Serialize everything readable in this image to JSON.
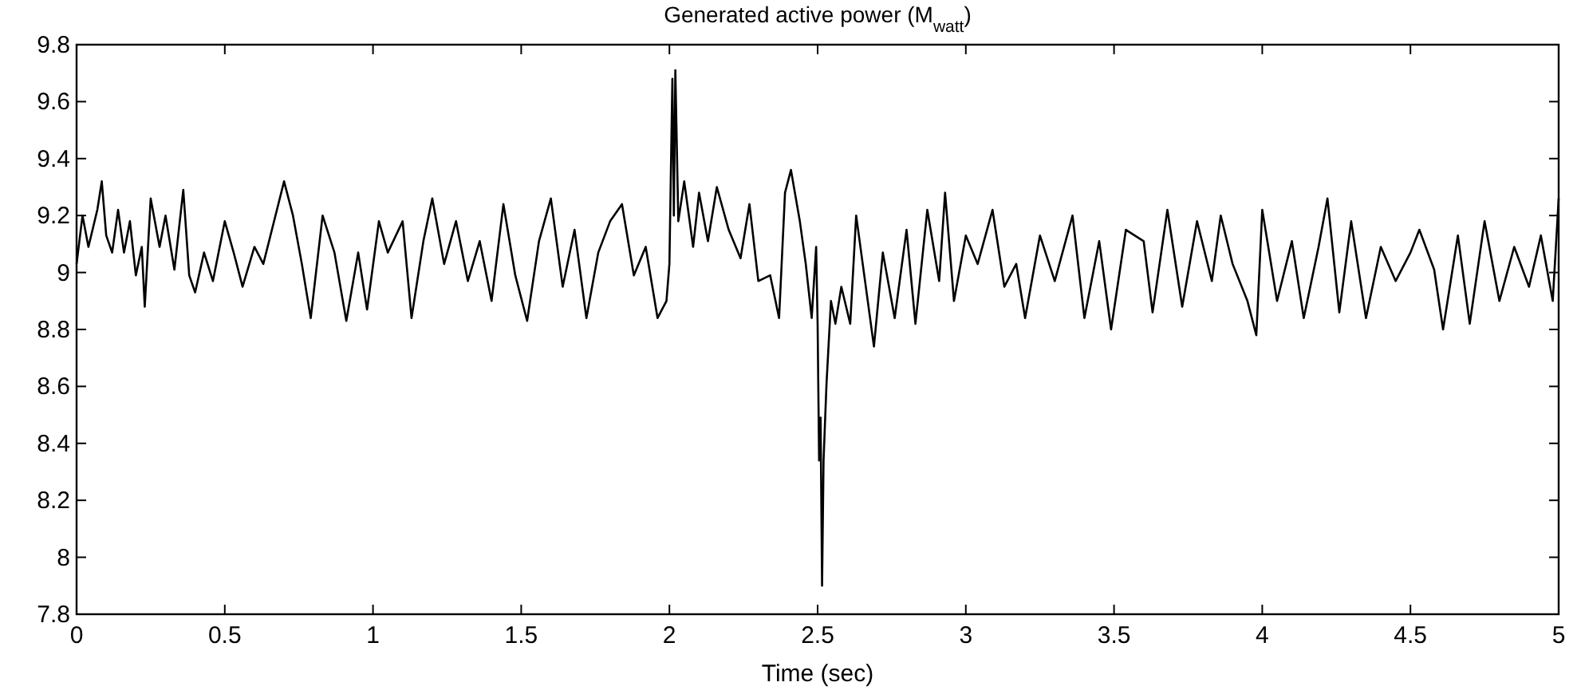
{
  "chart_data": {
    "type": "line",
    "title": "Generated active power (M$_{watt}$)",
    "xlabel": "Time (sec)",
    "xlim": [
      0,
      5
    ],
    "xticks": [
      0,
      0.5,
      1,
      1.5,
      2,
      2.5,
      3,
      3.5,
      4,
      4.5,
      5
    ],
    "ylim": [
      7.8,
      9.8
    ],
    "yticks": [
      7.8,
      8,
      8.2,
      8.4,
      8.6,
      8.8,
      9,
      9.2,
      9.4,
      9.6,
      9.8
    ],
    "grid": false,
    "marker": "none",
    "line_style": "solid",
    "series": [
      {
        "color": "#000000",
        "x": [
          0,
          0.02,
          0.04,
          0.07,
          0.085,
          0.1,
          0.12,
          0.14,
          0.16,
          0.18,
          0.2,
          0.22,
          0.23,
          0.25,
          0.28,
          0.3,
          0.33,
          0.36,
          0.38,
          0.4,
          0.43,
          0.46,
          0.5,
          0.53,
          0.56,
          0.6,
          0.63,
          0.7,
          0.73,
          0.76,
          0.79,
          0.83,
          0.87,
          0.91,
          0.95,
          0.98,
          1.02,
          1.05,
          1.1,
          1.13,
          1.17,
          1.2,
          1.24,
          1.28,
          1.32,
          1.36,
          1.4,
          1.44,
          1.48,
          1.52,
          1.56,
          1.6,
          1.64,
          1.68,
          1.72,
          1.76,
          1.8,
          1.84,
          1.88,
          1.92,
          1.96,
          1.99,
          2.0,
          2.01,
          2.015,
          2.02,
          2.03,
          2.05,
          2.08,
          2.1,
          2.13,
          2.16,
          2.2,
          2.24,
          2.27,
          2.3,
          2.34,
          2.37,
          2.39,
          2.41,
          2.44,
          2.46,
          2.48,
          2.495,
          2.5,
          2.505,
          2.51,
          2.515,
          2.52,
          2.53,
          2.545,
          2.56,
          2.58,
          2.61,
          2.63,
          2.66,
          2.69,
          2.72,
          2.76,
          2.8,
          2.83,
          2.87,
          2.91,
          2.93,
          2.96,
          3.0,
          3.04,
          3.09,
          3.13,
          3.17,
          3.2,
          3.25,
          3.3,
          3.36,
          3.4,
          3.45,
          3.49,
          3.54,
          3.6,
          3.63,
          3.68,
          3.73,
          3.78,
          3.83,
          3.86,
          3.9,
          3.95,
          3.98,
          4.0,
          4.05,
          4.1,
          4.14,
          4.19,
          4.22,
          4.26,
          4.3,
          4.35,
          4.4,
          4.45,
          4.5,
          4.53,
          4.58,
          4.61,
          4.66,
          4.7,
          4.75,
          4.8,
          4.85,
          4.9,
          4.94,
          4.98,
          5.0
        ],
        "values": [
          9.03,
          9.2,
          9.09,
          9.22,
          9.32,
          9.13,
          9.07,
          9.22,
          9.07,
          9.18,
          8.99,
          9.09,
          8.88,
          9.26,
          9.09,
          9.2,
          9.01,
          9.29,
          8.99,
          8.93,
          9.07,
          8.97,
          9.18,
          9.07,
          8.95,
          9.09,
          9.03,
          9.32,
          9.2,
          9.03,
          8.84,
          9.2,
          9.07,
          8.83,
          9.07,
          8.87,
          9.18,
          9.07,
          9.18,
          8.84,
          9.11,
          9.26,
          9.03,
          9.18,
          8.97,
          9.11,
          8.9,
          9.24,
          8.99,
          8.83,
          9.11,
          9.26,
          8.95,
          9.15,
          8.84,
          9.07,
          9.18,
          9.24,
          8.99,
          9.09,
          8.84,
          8.9,
          9.03,
          9.68,
          9.2,
          9.71,
          9.18,
          9.32,
          9.09,
          9.28,
          9.11,
          9.3,
          9.15,
          9.05,
          9.24,
          8.97,
          8.99,
          8.84,
          9.28,
          9.36,
          9.18,
          9.03,
          8.84,
          9.09,
          8.82,
          8.34,
          8.49,
          7.9,
          8.34,
          8.61,
          8.9,
          8.82,
          8.95,
          8.82,
          9.2,
          8.97,
          8.74,
          9.07,
          8.84,
          9.15,
          8.82,
          9.22,
          8.97,
          9.28,
          8.9,
          9.13,
          9.03,
          9.22,
          8.95,
          9.03,
          8.84,
          9.13,
          8.97,
          9.2,
          8.84,
          9.11,
          8.8,
          9.15,
          9.11,
          8.86,
          9.22,
          8.88,
          9.18,
          8.97,
          9.2,
          9.03,
          8.9,
          8.78,
          9.22,
          8.9,
          9.11,
          8.84,
          9.09,
          9.26,
          8.86,
          9.18,
          8.84,
          9.09,
          8.97,
          9.07,
          9.15,
          9.01,
          8.8,
          9.13,
          8.82,
          9.18,
          8.9,
          9.09,
          8.95,
          9.13,
          8.9,
          9.26
        ]
      }
    ]
  }
}
